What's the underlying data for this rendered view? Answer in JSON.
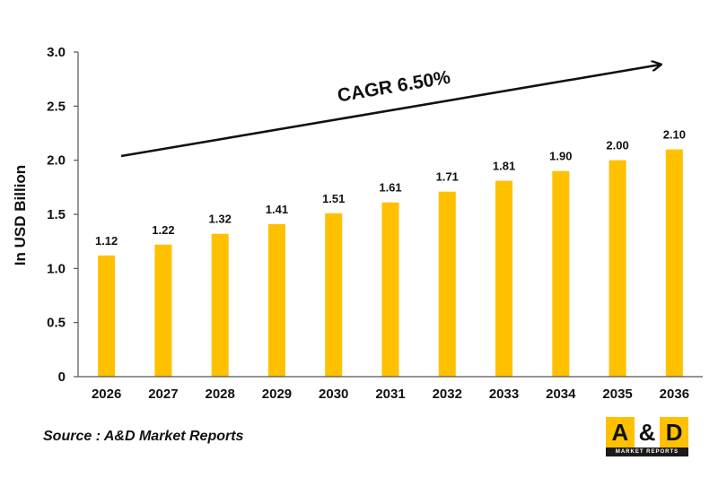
{
  "chart_data": {
    "type": "bar",
    "categories": [
      "2026",
      "2027",
      "2028",
      "2029",
      "2030",
      "2031",
      "2032",
      "2033",
      "2034",
      "2035",
      "2036"
    ],
    "values": [
      1.12,
      1.22,
      1.32,
      1.41,
      1.51,
      1.61,
      1.71,
      1.81,
      1.9,
      2.0,
      2.1
    ],
    "value_labels": [
      "1.12",
      "1.22",
      "1.32",
      "1.41",
      "1.51",
      "1.61",
      "1.71",
      "1.81",
      "1.90",
      "2.00",
      "2.10"
    ],
    "title": "",
    "xlabel": "",
    "ylabel": "In USD Billion",
    "ylim": [
      0,
      3.0
    ],
    "yticks": [
      "0",
      "0.5",
      "1.0",
      "1.5",
      "2.0",
      "2.5",
      "3.0"
    ],
    "grid": false,
    "legend": "none",
    "bar_color": "#FFC000",
    "annotation": "CAGR 6.50%"
  },
  "source": "Source : A&D Market Reports",
  "logo": {
    "a": "A",
    "amp": "&",
    "d": "D",
    "tagline": "MARKET REPORTS"
  }
}
